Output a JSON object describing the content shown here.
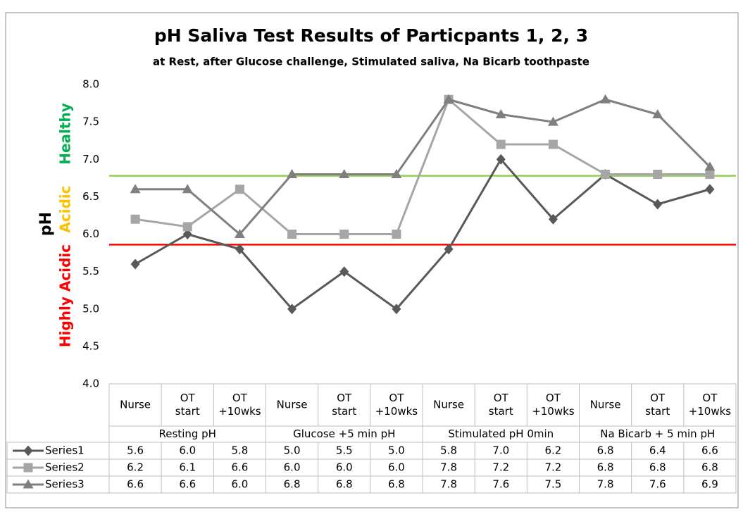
{
  "chart_data": {
    "type": "line",
    "title": "pH Saliva Test Results of Particpants 1, 2, 3",
    "subtitle": "at Rest, after Glucose challenge, Stimulated saliva, Na Bicarb toothpaste",
    "y_label": "pH",
    "annotations": [
      {
        "text": "Healthy",
        "color": "#00b050"
      },
      {
        "text": "Acidic",
        "color": "#ffc000"
      },
      {
        "text": "Highly Acidic",
        "color": "#ff0000"
      }
    ],
    "categories": [
      [
        "Nurse"
      ],
      [
        "OT",
        "start"
      ],
      [
        "OT",
        "+10wks"
      ],
      [
        "Nurse"
      ],
      [
        "OT",
        "start"
      ],
      [
        "OT",
        "+10wks"
      ],
      [
        "Nurse"
      ],
      [
        "OT",
        "start"
      ],
      [
        "OT",
        "+10wks"
      ],
      [
        "Nurse"
      ],
      [
        "OT",
        "start"
      ],
      [
        "OT",
        "+10wks"
      ]
    ],
    "groups": [
      "Resting pH",
      "Glucose +5 min pH",
      "Stimulated pH 0min",
      "Na Bicarb + 5 min pH"
    ],
    "series": [
      {
        "name": "Series1",
        "color": "#595959",
        "marker": "diamond",
        "values": [
          5.6,
          6.0,
          5.8,
          5.0,
          5.5,
          5.0,
          5.8,
          7.0,
          6.2,
          6.8,
          6.4,
          6.6
        ],
        "value_labels": [
          "5.6",
          "6.0",
          "5.8",
          "5.0",
          "5.5",
          "5.0",
          "5.8",
          "7.0",
          "6.2",
          "6.8",
          "6.4",
          "6.6"
        ]
      },
      {
        "name": "Series2",
        "color": "#a6a6a6",
        "marker": "square",
        "values": [
          6.2,
          6.1,
          6.6,
          6.0,
          6.0,
          6.0,
          7.8,
          7.2,
          7.2,
          6.8,
          6.8,
          6.8
        ],
        "value_labels": [
          "6.2",
          "6.1",
          "6.6",
          "6.0",
          "6.0",
          "6.0",
          "7.8",
          "7.2",
          "7.2",
          "6.8",
          "6.8",
          "6.8"
        ]
      },
      {
        "name": "Series3",
        "color": "#7f7f7f",
        "marker": "triangle",
        "values": [
          6.6,
          6.6,
          6.0,
          6.8,
          6.8,
          6.8,
          7.8,
          7.6,
          7.5,
          7.8,
          7.6,
          6.9
        ],
        "value_labels": [
          "6.6",
          "6.6",
          "6.0",
          "6.8",
          "6.8",
          "6.8",
          "7.8",
          "7.6",
          "7.5",
          "7.8",
          "7.6",
          "6.9"
        ]
      }
    ],
    "reference_lines": [
      {
        "value": 6.78,
        "color": "#92d050"
      },
      {
        "value": 5.86,
        "color": "#ff0000"
      }
    ],
    "ylim": [
      4,
      8
    ],
    "yticks": [
      {
        "value": 4,
        "label": "4.0"
      },
      {
        "value": 4.5,
        "label": "4.5"
      },
      {
        "value": 5,
        "label": "5.0"
      },
      {
        "value": 5.5,
        "label": "5.5"
      },
      {
        "value": 6,
        "label": "6.0"
      },
      {
        "value": 6.5,
        "label": "6.5"
      },
      {
        "value": 7,
        "label": "7.0"
      },
      {
        "value": 7.5,
        "label": "7.5"
      },
      {
        "value": 8,
        "label": "8.0"
      }
    ]
  }
}
